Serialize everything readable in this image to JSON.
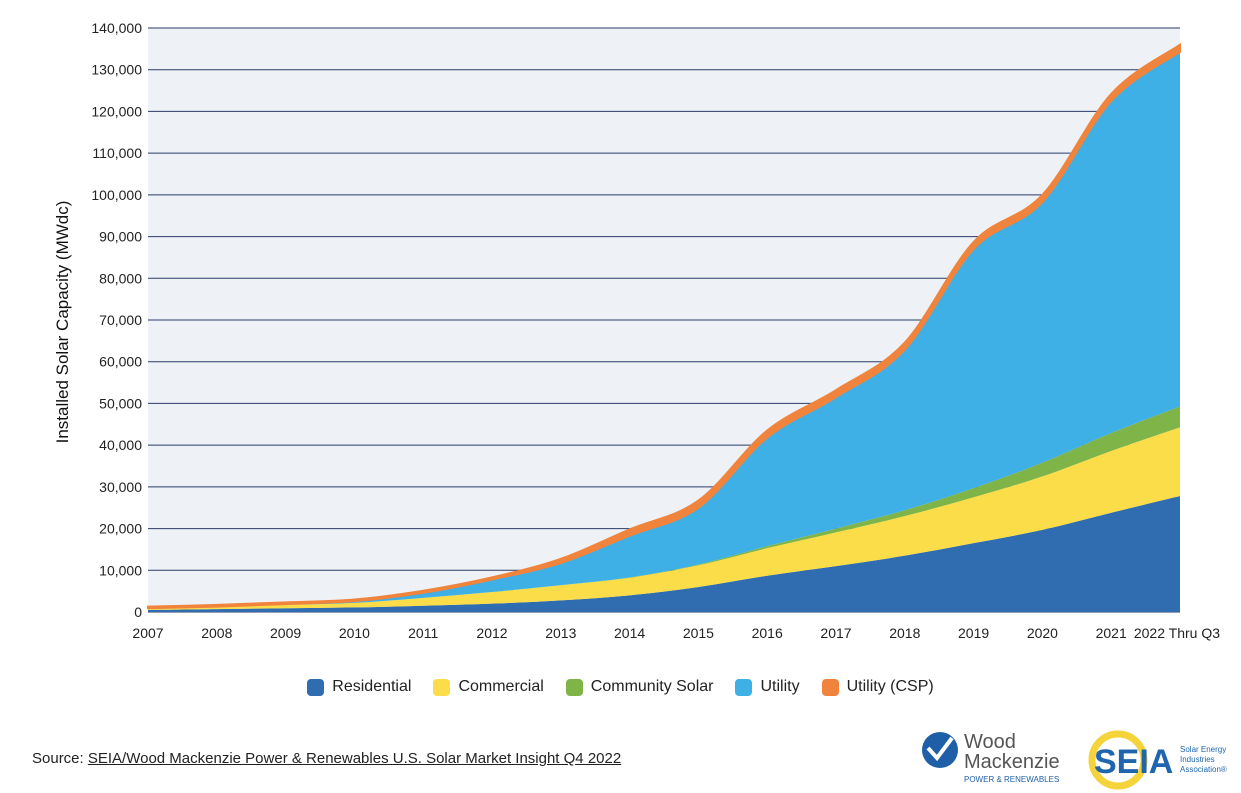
{
  "chart_data": {
    "type": "area",
    "stacked": true,
    "ylabel": "Installed Solar Capacity (MWdc)",
    "xlabel": "",
    "ylim": [
      0,
      140000
    ],
    "yticks": [
      0,
      10000,
      20000,
      30000,
      40000,
      50000,
      60000,
      70000,
      80000,
      90000,
      100000,
      110000,
      120000,
      130000,
      140000
    ],
    "ytick_labels": [
      "0",
      "10,000",
      "20,000",
      "30,000",
      "40,000",
      "50,000",
      "60,000",
      "70,000",
      "80,000",
      "90,000",
      "100,000",
      "110,000",
      "120,000",
      "130,000",
      "140,000"
    ],
    "categories": [
      "2007",
      "2008",
      "2009",
      "2010",
      "2011",
      "2012",
      "2013",
      "2014",
      "2015",
      "2016",
      "2017",
      "2018",
      "2019",
      "2020",
      "2021",
      "2022 Thru Q3"
    ],
    "grid": true,
    "legend_position": "bottom",
    "series": [
      {
        "name": "Residential",
        "color": "#2f6db0",
        "values": [
          500,
          700,
          900,
          1100,
          1500,
          2000,
          2800,
          4000,
          6000,
          8700,
          11000,
          13500,
          16500,
          19700,
          23800,
          27800
        ]
      },
      {
        "name": "Commercial",
        "color": "#fbdd4a",
        "values": [
          300,
          500,
          800,
          1100,
          1900,
          2800,
          3600,
          4200,
          5200,
          6600,
          8100,
          9500,
          11000,
          12800,
          14800,
          16500
        ]
      },
      {
        "name": "Community Solar",
        "color": "#7fb548",
        "values": [
          0,
          0,
          0,
          0,
          0,
          0,
          50,
          100,
          200,
          500,
          900,
          1400,
          2200,
          3300,
          4300,
          5000
        ]
      },
      {
        "name": "Utility",
        "color": "#3fb0e5",
        "values": [
          100,
          100,
          200,
          400,
          1200,
          3000,
          5300,
          10000,
          13600,
          26000,
          31500,
          38500,
          57300,
          62500,
          79600,
          85000
        ]
      },
      {
        "name": "Utility (CSP)",
        "color": "#f1843c",
        "values": [
          400,
          400,
          400,
          400,
          500,
          500,
          1000,
          1500,
          1700,
          1700,
          1700,
          1700,
          1700,
          1700,
          1700,
          1700
        ]
      }
    ]
  },
  "source": {
    "prefix": "Source: ",
    "text": "SEIA/Wood Mackenzie Power & Renewables U.S. Solar Market Insight Q4 2022"
  },
  "logos": {
    "woodmac_line1": "Wood",
    "woodmac_line2": "Mackenzie",
    "woodmac_sub": "POWER & RENEWABLES",
    "seia": "SEIA",
    "seia_sub1": "Solar Energy",
    "seia_sub2": "Industries",
    "seia_sub3": "Association®",
    "woodmac_color": "#1e5fa8",
    "seia_blue": "#1f66ae",
    "seia_yellow": "#f5d33a"
  }
}
